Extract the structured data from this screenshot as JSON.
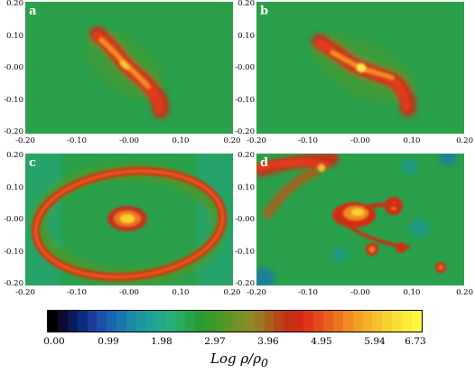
{
  "panels": [
    {
      "label": "a",
      "ticks_y": [
        "0.20",
        "0.10",
        "-0.00",
        "-0.10",
        "-0.20"
      ],
      "ticks_x": [
        "-0.20",
        "-0.10",
        "-0.00",
        "0.10",
        "0.20"
      ]
    },
    {
      "label": "b",
      "ticks_y": [
        "0.20",
        "0.10",
        "-0.00",
        "-0.10",
        "-0.20"
      ],
      "ticks_x": [
        "-0.20",
        "-0.10",
        "-0.00",
        "0.10",
        "0.20"
      ]
    },
    {
      "label": "c",
      "ticks_y": [
        "0.20",
        "0.10",
        "-0.00",
        "-0.10",
        "-0.20"
      ],
      "ticks_x": [
        "-0.20",
        "-0.10",
        "-0.00",
        "0.10",
        "0.20"
      ]
    },
    {
      "label": "d",
      "ticks_y": [
        "0.20",
        "0.10",
        "-0.00",
        "-0.10",
        "-0.20"
      ],
      "ticks_x": [
        "-0.20",
        "-0.10",
        "-0.00",
        "0.10",
        "0.20"
      ]
    }
  ],
  "colorbar": {
    "tick_labels": [
      "0.00",
      "0.99",
      "1.98",
      "2.97",
      "3.96",
      "4.95",
      "5.94",
      "6.73"
    ],
    "title": "Log ρ/ρ",
    "title_subscript": "0",
    "colors": [
      "#000000",
      "#0d0a30",
      "#0a1b5c",
      "#0a2d80",
      "#1a3c9c",
      "#1c4fae",
      "#1866b0",
      "#1a78ad",
      "#1b89a8",
      "#1d97a0",
      "#1fa296",
      "#22aa88",
      "#28b078",
      "#2aaa60",
      "#2aa44a",
      "#2a9c36",
      "#369a2c",
      "#4a982a",
      "#5f9428",
      "#749028",
      "#8a8a26",
      "#9a7a22",
      "#a8601c",
      "#b44618",
      "#c43016",
      "#d42a14",
      "#e0361a",
      "#e44a1c",
      "#e8601e",
      "#ec7620",
      "#f08c22",
      "#f2a024",
      "#f4b228",
      "#f6c22c",
      "#f8d230",
      "#fae034",
      "#fcec38",
      "#fef640"
    ]
  }
}
